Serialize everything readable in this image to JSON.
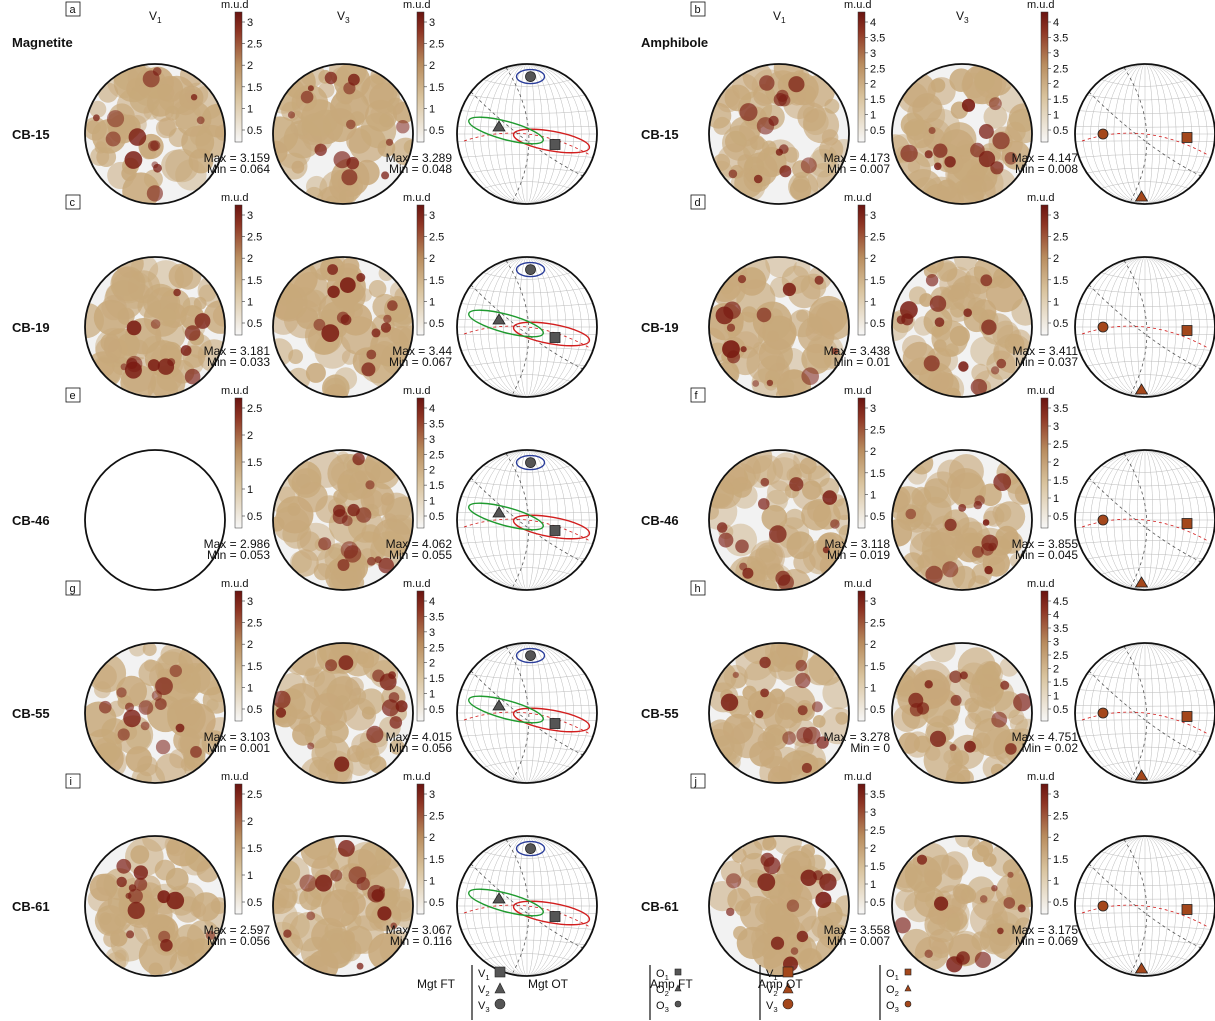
{
  "column_titles": {
    "left": "Magnetite",
    "right": "Amphibole"
  },
  "column_headers": {
    "v1_base": "V",
    "v1_sub": "1",
    "v3_base": "V",
    "v3_sub": "3"
  },
  "cbar_unit": "m.u.d",
  "colors": {
    "pf_low": "#f2f2f2",
    "pf_mid": "#c8a97b",
    "pf_high": "#7a1b12",
    "mgt_symbol": "#555555",
    "amp_symbol": "#a4471b",
    "ellipse_v1": "#d21e1e",
    "ellipse_v2": "#1f9a2f",
    "ellipse_v3": "#2a3d9a"
  },
  "rows": [
    {
      "sample": "CB-15",
      "left": {
        "letter": "a",
        "v1": {
          "max": "3.159",
          "min": "0.064",
          "ticks": [
            "3",
            "2.5",
            "2",
            "1.5",
            "1",
            "0.5"
          ]
        },
        "v3": {
          "max": "3.289",
          "min": "0.048",
          "ticks": [
            "3",
            "2.5",
            "2",
            "1.5",
            "1",
            "0.5"
          ]
        }
      },
      "right": {
        "letter": "b",
        "v1": {
          "max": "4.173",
          "min": "0.007",
          "ticks": [
            "4",
            "3.5",
            "3",
            "2.5",
            "2",
            "1.5",
            "1",
            "0.5"
          ]
        },
        "v3": {
          "max": "4.147",
          "min": "0.008",
          "ticks": [
            "4",
            "3.5",
            "3",
            "2.5",
            "2",
            "1.5",
            "1",
            "0.5"
          ]
        }
      }
    },
    {
      "sample": "CB-19",
      "left": {
        "letter": "c",
        "v1": {
          "max": "3.181",
          "min": "0.033",
          "ticks": [
            "3",
            "2.5",
            "2",
            "1.5",
            "1",
            "0.5"
          ]
        },
        "v3": {
          "max": "3.44",
          "min": "0.067",
          "ticks": [
            "3",
            "2.5",
            "2",
            "1.5",
            "1",
            "0.5"
          ]
        }
      },
      "right": {
        "letter": "d",
        "v1": {
          "max": "3.438",
          "min": "0.01",
          "ticks": [
            "3",
            "2.5",
            "2",
            "1.5",
            "1",
            "0.5"
          ]
        },
        "v3": {
          "max": "3.411",
          "min": "0.037",
          "ticks": [
            "3",
            "2.5",
            "2",
            "1.5",
            "1",
            "0.5"
          ]
        }
      }
    },
    {
      "sample": "CB-46",
      "left": {
        "letter": "e",
        "v1": {
          "max": "2.986",
          "min": "0.053",
          "ticks": [
            "2.5",
            "2",
            "1.5",
            "1",
            "0.5"
          ]
        },
        "v3": {
          "max": "4.062",
          "min": "0.055",
          "ticks": [
            "4",
            "3.5",
            "3",
            "2.5",
            "2",
            "1.5",
            "1",
            "0.5"
          ]
        }
      },
      "right": {
        "letter": "f",
        "v1": {
          "max": "3.118",
          "min": "0.019",
          "ticks": [
            "3",
            "2.5",
            "2",
            "1.5",
            "1",
            "0.5"
          ]
        },
        "v3": {
          "max": "3.855",
          "min": "0.045",
          "ticks": [
            "3.5",
            "3",
            "2.5",
            "2",
            "1.5",
            "1",
            "0.5"
          ]
        }
      }
    },
    {
      "sample": "CB-55",
      "left": {
        "letter": "g",
        "v1": {
          "max": "3.103",
          "min": "0.001",
          "ticks": [
            "3",
            "2.5",
            "2",
            "1.5",
            "1",
            "0.5"
          ]
        },
        "v3": {
          "max": "4.015",
          "min": "0.056",
          "ticks": [
            "4",
            "3.5",
            "3",
            "2.5",
            "2",
            "1.5",
            "1",
            "0.5"
          ]
        }
      },
      "right": {
        "letter": "h",
        "v1": {
          "max": "3.278",
          "min": "0",
          "ticks": [
            "3",
            "2.5",
            "2",
            "1.5",
            "1",
            "0.5"
          ]
        },
        "v3": {
          "max": "4.751",
          "min": "0.02",
          "ticks": [
            "4.5",
            "4",
            "3.5",
            "3",
            "2.5",
            "2",
            "1.5",
            "1",
            "0.5"
          ]
        }
      }
    },
    {
      "sample": "CB-61",
      "left": {
        "letter": "i",
        "v1": {
          "max": "2.597",
          "min": "0.056",
          "ticks": [
            "2.5",
            "2",
            "1.5",
            "1",
            "0.5"
          ]
        },
        "v3": {
          "max": "3.067",
          "min": "0.116",
          "ticks": [
            "3",
            "2.5",
            "2",
            "1.5",
            "1",
            "0.5"
          ]
        }
      },
      "right": {
        "letter": "j",
        "v1": {
          "max": "3.558",
          "min": "0.007",
          "ticks": [
            "3.5",
            "3",
            "2.5",
            "2",
            "1.5",
            "1",
            "0.5"
          ]
        },
        "v3": {
          "max": "3.175",
          "min": "0.069",
          "ticks": [
            "3",
            "2.5",
            "2",
            "1.5",
            "1",
            "0.5"
          ]
        }
      }
    }
  ],
  "legend": {
    "groups": [
      {
        "label": "Mgt FT",
        "shape_set": "mgt-large",
        "items": [
          [
            "V",
            "1"
          ],
          [
            "V",
            "2"
          ],
          [
            "V",
            "3"
          ]
        ]
      },
      {
        "label": "Mgt OT",
        "shape_set": "mgt-small",
        "items": [
          [
            "O",
            "1"
          ],
          [
            "O",
            "2"
          ],
          [
            "O",
            "3"
          ]
        ]
      },
      {
        "label": "Amp FT",
        "shape_set": "amp-large",
        "items": [
          [
            "V",
            "1"
          ],
          [
            "V",
            "2"
          ],
          [
            "V",
            "3"
          ]
        ]
      },
      {
        "label": "Amp OT",
        "shape_set": "amp-small",
        "items": [
          [
            "O",
            "1"
          ],
          [
            "O",
            "2"
          ],
          [
            "O",
            "3"
          ]
        ]
      }
    ]
  }
}
